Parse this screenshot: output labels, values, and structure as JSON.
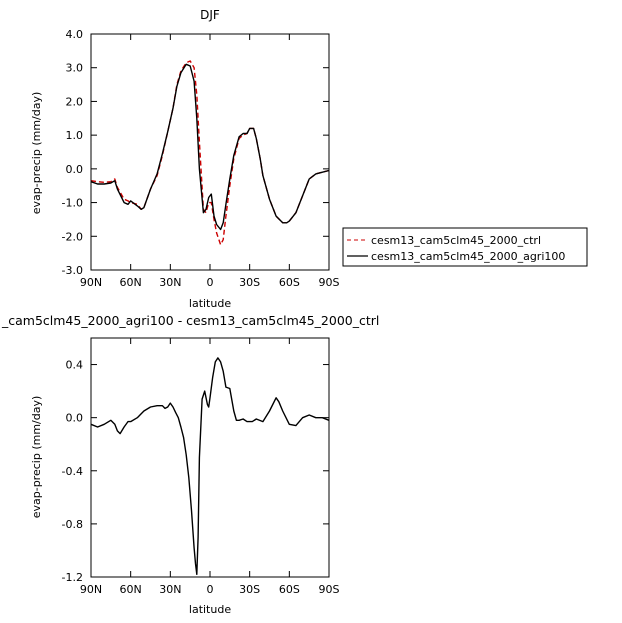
{
  "chart_data": [
    {
      "type": "line",
      "title": "DJF",
      "xlabel": "latitude",
      "ylabel": "evap-precip (mm/day)",
      "xlim": [
        90,
        -90
      ],
      "ylim": [
        -3.0,
        4.0
      ],
      "x_ticks": [
        90,
        60,
        30,
        0,
        -30,
        -60,
        -90
      ],
      "x_tick_labels": [
        "90N",
        "60N",
        "30N",
        "0",
        "30S",
        "60S",
        "90S"
      ],
      "y_ticks": [
        -3,
        -2,
        -1,
        0,
        1,
        2,
        3,
        4
      ],
      "y_tick_labels": [
        "-3.0",
        "-2.0",
        "-1.0",
        "0.0",
        "1.0",
        "2.0",
        "3.0",
        "4.0"
      ],
      "grid": false,
      "legend_position": "right",
      "series": [
        {
          "name": "cesm13_cam5clm45_2000_ctrl",
          "color": "#cc0000",
          "dash": "dashed",
          "x": [
            90,
            85,
            80,
            75,
            72,
            70,
            65,
            62,
            60,
            55,
            52,
            50,
            45,
            40,
            36,
            32,
            28,
            25,
            22,
            18,
            15,
            12,
            10,
            8,
            5,
            3,
            1,
            -1,
            -3,
            -5,
            -8,
            -10,
            -12,
            -15,
            -18,
            -22,
            -25,
            -28,
            -30,
            -33,
            -35,
            -38,
            -40,
            -45,
            -50,
            -55,
            -58,
            -60,
            -62,
            -65,
            -70,
            -75,
            -80,
            -85,
            -90
          ],
          "y": [
            -0.35,
            -0.38,
            -0.4,
            -0.38,
            -0.3,
            -0.55,
            -0.9,
            -0.95,
            -1.0,
            -1.05,
            -1.2,
            -1.15,
            -0.6,
            -0.2,
            0.4,
            1.1,
            1.8,
            2.5,
            2.9,
            3.15,
            3.2,
            3.0,
            2.2,
            0.8,
            -1.2,
            -1.3,
            -1.0,
            -1.0,
            -1.5,
            -1.9,
            -2.25,
            -2.1,
            -1.4,
            -0.5,
            0.3,
            0.9,
            1.0,
            1.05,
            1.2,
            1.2,
            0.9,
            0.3,
            -0.2,
            -0.9,
            -1.4,
            -1.6,
            -1.6,
            -1.55,
            -1.45,
            -1.3,
            -0.8,
            -0.3,
            -0.15,
            -0.1,
            -0.05
          ]
        },
        {
          "name": "cesm13_cam5clm45_2000_agri100",
          "color": "#000000",
          "dash": "solid",
          "x": [
            90,
            85,
            80,
            75,
            72,
            70,
            65,
            62,
            60,
            55,
            52,
            50,
            45,
            40,
            36,
            32,
            28,
            25,
            22,
            18,
            15,
            12,
            10,
            8,
            5,
            3,
            1,
            -1,
            -3,
            -5,
            -8,
            -10,
            -12,
            -15,
            -18,
            -22,
            -25,
            -28,
            -30,
            -33,
            -35,
            -38,
            -40,
            -45,
            -50,
            -55,
            -58,
            -60,
            -62,
            -65,
            -70,
            -75,
            -80,
            -85,
            -90
          ],
          "y": [
            -0.38,
            -0.45,
            -0.45,
            -0.42,
            -0.35,
            -0.6,
            -1.0,
            -1.05,
            -0.95,
            -1.1,
            -1.2,
            -1.15,
            -0.6,
            -0.15,
            0.45,
            1.1,
            1.8,
            2.45,
            2.85,
            3.1,
            3.05,
            2.6,
            1.5,
            0.0,
            -1.3,
            -1.2,
            -0.85,
            -0.75,
            -1.4,
            -1.65,
            -1.8,
            -1.6,
            -1.05,
            -0.3,
            0.4,
            0.95,
            1.05,
            1.05,
            1.2,
            1.2,
            0.9,
            0.3,
            -0.2,
            -0.9,
            -1.4,
            -1.6,
            -1.6,
            -1.55,
            -1.45,
            -1.3,
            -0.8,
            -0.3,
            -0.15,
            -0.1,
            -0.05
          ]
        }
      ]
    },
    {
      "type": "line",
      "title": "_cam5clm45_2000_agri100 - cesm13_cam5clm45_2000_ctrl",
      "xlabel": "latitude",
      "ylabel": "evap-precip (mm/day)",
      "xlim": [
        90,
        -90
      ],
      "ylim": [
        -1.2,
        0.6
      ],
      "x_ticks": [
        90,
        60,
        30,
        0,
        -30,
        -60,
        -90
      ],
      "x_tick_labels": [
        "90N",
        "60N",
        "30N",
        "0",
        "30S",
        "60S",
        "90S"
      ],
      "y_ticks": [
        -1.2,
        -0.8,
        -0.4,
        0.0,
        0.4
      ],
      "y_tick_labels": [
        "-1.2",
        "-0.8",
        "-0.4",
        "0.0",
        "0.4"
      ],
      "grid": false,
      "series": [
        {
          "color": "#000000",
          "dash": "solid",
          "x": [
            90,
            85,
            80,
            75,
            72,
            70,
            68,
            65,
            62,
            60,
            55,
            50,
            45,
            40,
            36,
            34,
            32,
            30,
            28,
            26,
            24,
            22,
            20,
            18,
            16,
            14,
            12,
            11,
            10,
            9,
            8,
            6,
            4,
            2,
            1,
            0,
            -2,
            -4,
            -6,
            -8,
            -10,
            -12,
            -15,
            -18,
            -20,
            -22,
            -25,
            -28,
            -32,
            -35,
            -40,
            -45,
            -50,
            -52,
            -55,
            -60,
            -65,
            -70,
            -75,
            -80,
            -85,
            -90
          ],
          "y": [
            -0.05,
            -0.07,
            -0.05,
            -0.02,
            -0.05,
            -0.1,
            -0.12,
            -0.07,
            -0.03,
            -0.03,
            0.0,
            0.05,
            0.08,
            0.09,
            0.09,
            0.07,
            0.08,
            0.11,
            0.08,
            0.04,
            0.0,
            -0.07,
            -0.15,
            -0.28,
            -0.45,
            -0.7,
            -0.98,
            -1.1,
            -1.18,
            -0.9,
            -0.3,
            0.14,
            0.2,
            0.1,
            0.08,
            0.15,
            0.3,
            0.42,
            0.45,
            0.42,
            0.35,
            0.23,
            0.22,
            0.05,
            -0.02,
            -0.02,
            -0.01,
            -0.03,
            -0.03,
            -0.01,
            -0.03,
            0.05,
            0.15,
            0.12,
            0.05,
            -0.05,
            -0.06,
            0.0,
            0.02,
            0.0,
            0.0,
            -0.02
          ]
        }
      ]
    }
  ]
}
